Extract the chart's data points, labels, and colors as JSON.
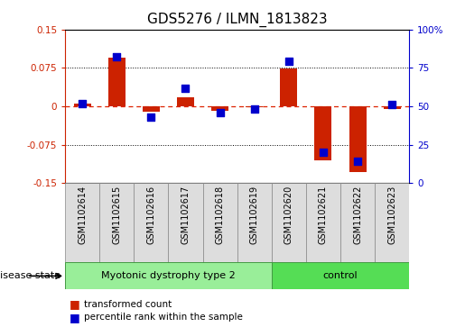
{
  "title": "GDS5276 / ILMN_1813823",
  "samples": [
    "GSM1102614",
    "GSM1102615",
    "GSM1102616",
    "GSM1102617",
    "GSM1102618",
    "GSM1102619",
    "GSM1102620",
    "GSM1102621",
    "GSM1102622",
    "GSM1102623"
  ],
  "red_values": [
    0.005,
    0.095,
    -0.01,
    0.018,
    -0.008,
    -0.002,
    0.073,
    -0.105,
    -0.128,
    -0.005
  ],
  "blue_values": [
    52,
    82,
    43,
    62,
    46,
    48,
    79,
    20,
    14,
    51
  ],
  "ylim_left": [
    -0.15,
    0.15
  ],
  "ylim_right": [
    0,
    100
  ],
  "yticks_left": [
    -0.15,
    -0.075,
    0,
    0.075,
    0.15
  ],
  "yticks_right": [
    0,
    25,
    50,
    75,
    100
  ],
  "ytick_labels_left": [
    "-0.15",
    "-0.075",
    "0",
    "0.075",
    "0.15"
  ],
  "ytick_labels_right": [
    "0",
    "25",
    "50",
    "75",
    "100%"
  ],
  "hline_dotted": [
    0.075,
    -0.075
  ],
  "hline_zero": 0,
  "group1_label": "Myotonic dystrophy type 2",
  "group2_label": "control",
  "group1_indices": [
    0,
    1,
    2,
    3,
    4,
    5
  ],
  "group2_indices": [
    6,
    7,
    8,
    9
  ],
  "disease_state_label": "disease state",
  "legend_red": "transformed count",
  "legend_blue": "percentile rank within the sample",
  "bar_color": "#cc2200",
  "dot_color": "#0000cc",
  "group1_color": "#99ee99",
  "group2_color": "#55dd55",
  "label_cell_color": "#dddddd",
  "bar_width": 0.5,
  "dot_size": 30,
  "background_color": "#ffffff",
  "red_zero_line_color": "#dd2200",
  "title_fontsize": 11,
  "tick_fontsize": 7.5,
  "label_fontsize": 7,
  "group_fontsize": 8,
  "legend_fontsize": 7.5
}
